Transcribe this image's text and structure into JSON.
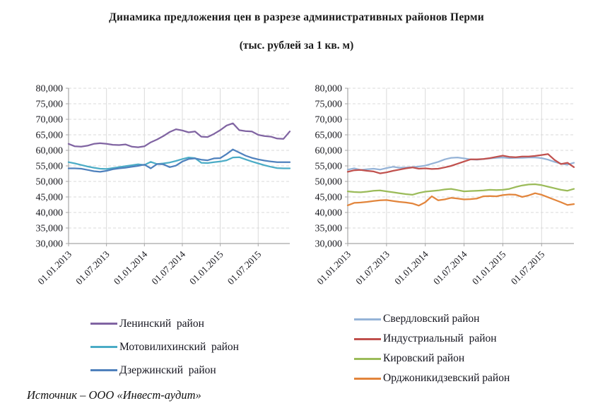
{
  "title": {
    "line1": "Динамика предложения цен в разрезе административных районов Перми",
    "line2": "(тыс. рублей за 1 кв. м)"
  },
  "source_note": "Источник – ООО «Инвест-аудит»",
  "style": {
    "background": "#ffffff",
    "grid_color": "#dadada",
    "axis_color": "#a6a6a6",
    "text_color": "#17171d"
  },
  "chart_data": [
    {
      "type": "line",
      "title": "",
      "x_description": "monthly offers, Jan 2013 – Dec 2015",
      "n_points": 36,
      "x_tick_labels": [
        "01.01.2013",
        "01.07.2013",
        "01.01.2014",
        "01.07.2014",
        "01.01.2015",
        "01.07.2015"
      ],
      "x_tick_months": [
        0,
        6,
        12,
        18,
        24,
        30
      ],
      "ylim": [
        30000,
        80000
      ],
      "y_step": 5000,
      "grid": "horizontal dashed + vertical solid at ticks",
      "legend_position": "bottom",
      "series": [
        {
          "name": "Ленинский  район",
          "color": "#8064A2",
          "values": [
            62100,
            61300,
            61200,
            61500,
            62100,
            62300,
            62100,
            61800,
            61700,
            61900,
            61200,
            61000,
            61300,
            62600,
            63500,
            64600,
            65900,
            66800,
            66400,
            65800,
            66100,
            64400,
            64300,
            65300,
            66500,
            68000,
            68700,
            66500,
            66200,
            66100,
            65000,
            64600,
            64400,
            63800,
            63700,
            66100
          ]
        },
        {
          "name": "Мотовилихинский  район",
          "color": "#4BACC6",
          "values": [
            56200,
            55800,
            55300,
            54800,
            54400,
            54100,
            54000,
            54300,
            54600,
            54900,
            55200,
            55500,
            55300,
            56300,
            55600,
            55800,
            56100,
            56600,
            57200,
            57700,
            57500,
            56000,
            55900,
            56200,
            56400,
            56800,
            57700,
            57800,
            57100,
            56400,
            55800,
            55200,
            54700,
            54300,
            54200,
            54200
          ]
        },
        {
          "name": "Дзержинский  район",
          "color": "#4F81BD",
          "values": [
            54200,
            54200,
            54100,
            53700,
            53300,
            53100,
            53400,
            53900,
            54200,
            54400,
            54700,
            55000,
            55400,
            54200,
            55600,
            55500,
            54600,
            55100,
            56400,
            57200,
            57400,
            57000,
            56800,
            57400,
            57500,
            58800,
            60300,
            59300,
            58300,
            57600,
            57100,
            56700,
            56400,
            56200,
            56200,
            56200
          ]
        }
      ]
    },
    {
      "type": "line",
      "title": "",
      "x_description": "monthly offers, Jan 2013 – Dec 2015",
      "n_points": 36,
      "x_tick_labels": [
        "01.01.2013",
        "01.07.2013",
        "01.01.2014",
        "01.07.2014",
        "01.01.2015",
        "01.07.2015"
      ],
      "x_tick_months": [
        0,
        6,
        12,
        18,
        24,
        30
      ],
      "ylim": [
        30000,
        80000
      ],
      "y_step": 5000,
      "grid": "horizontal dashed + vertical solid at ticks",
      "legend_position": "bottom",
      "series": [
        {
          "name": "Свердловский район",
          "color": "#95B3D7",
          "values": [
            53800,
            54200,
            53700,
            53900,
            54100,
            53800,
            54300,
            54700,
            54400,
            54500,
            54600,
            54800,
            55100,
            55700,
            56300,
            57100,
            57600,
            57700,
            57400,
            57100,
            57000,
            57200,
            57400,
            57600,
            57700,
            57500,
            57600,
            57600,
            57700,
            57700,
            57500,
            57000,
            56300,
            55700,
            55400,
            56000
          ]
        },
        {
          "name": "Индустриальный  район",
          "color": "#C0504D",
          "values": [
            53100,
            53600,
            53700,
            53400,
            53200,
            52600,
            52900,
            53400,
            53800,
            54200,
            54500,
            54100,
            54200,
            54000,
            54100,
            54500,
            55000,
            55700,
            56400,
            57100,
            57100,
            57200,
            57500,
            57900,
            58300,
            57900,
            57800,
            58000,
            58000,
            58200,
            58500,
            58800,
            56900,
            55600,
            56000,
            54600
          ]
        },
        {
          "name": "Кировский район",
          "color": "#9BBB59",
          "values": [
            46800,
            46600,
            46500,
            46700,
            47000,
            47100,
            46800,
            46500,
            46200,
            45900,
            45700,
            46300,
            46700,
            46900,
            47100,
            47400,
            47600,
            47200,
            46800,
            46900,
            47000,
            47100,
            47300,
            47200,
            47300,
            47600,
            48200,
            48700,
            49000,
            49100,
            48800,
            48300,
            47800,
            47300,
            47000,
            47600
          ]
        },
        {
          "name": "Орджоникидзевский район",
          "color": "#E2853C",
          "values": [
            42300,
            43100,
            43200,
            43400,
            43700,
            43900,
            44000,
            43700,
            43400,
            43200,
            42900,
            42200,
            43300,
            45200,
            43900,
            44200,
            44700,
            44500,
            44200,
            44300,
            44500,
            45200,
            45300,
            45200,
            45600,
            45800,
            45700,
            45000,
            45500,
            46200,
            45700,
            44900,
            44100,
            43300,
            42400,
            42700
          ]
        }
      ]
    }
  ]
}
